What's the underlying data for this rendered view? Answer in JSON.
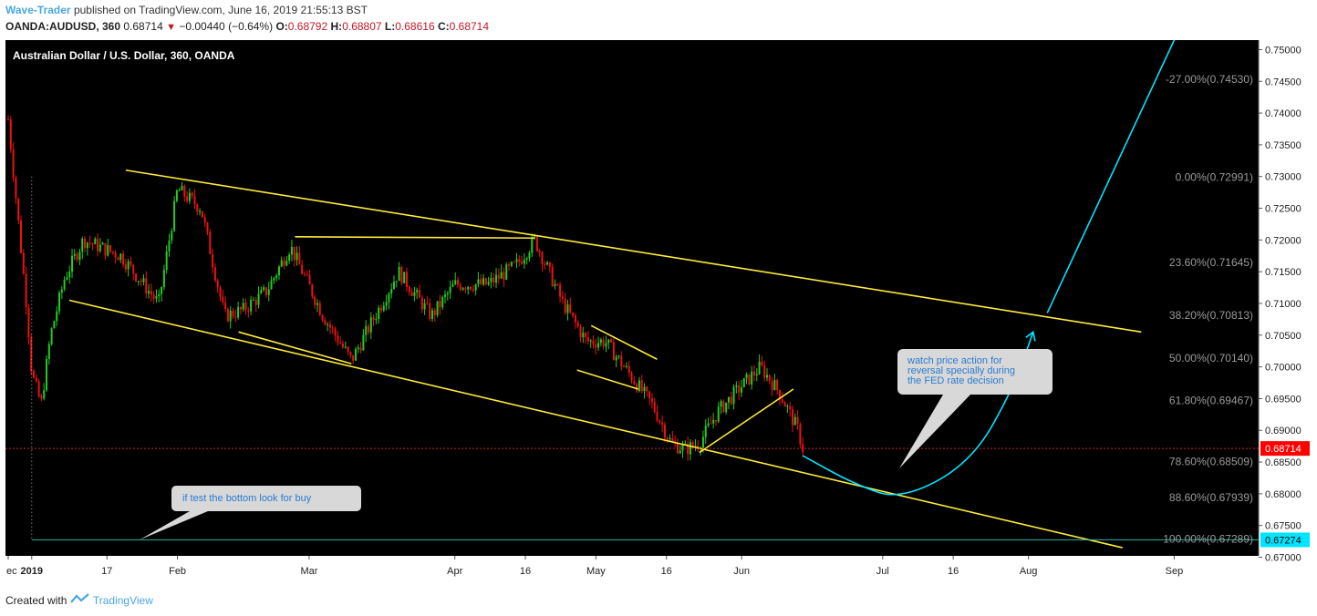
{
  "header": {
    "author": "Wave-Trader",
    "published_text": "published on TradingView.com, June 16, 2019 21:55:13 BST",
    "symbol": "OANDA:AUDUSD, 360",
    "last": "0.68714",
    "change": "−0.00440 (−0.64%)",
    "o_label": "O:",
    "o_value": "0.68792",
    "h_label": "H:",
    "h_value": "0.68807",
    "l_label": "L:",
    "l_value": "0.68616",
    "c_label": "C:",
    "c_value": "0.68714"
  },
  "footer": {
    "created_with": "Created with",
    "brand": "TradingView"
  },
  "colors": {
    "background": "#000000",
    "up": "#22cc22",
    "down": "#ee1111",
    "trendline": "#ffeb3b",
    "projection": "#00e5ff",
    "price_tag": "#ff0000",
    "support_tag": "#00e5ff",
    "callout": "#d8d8d8",
    "callout_text": "#2a7bd1"
  },
  "chart_data": {
    "type": "candlestick",
    "title": "Australian Dollar / U.S. Dollar, 360, OANDA",
    "ylim": [
      0.67,
      0.7515
    ],
    "y_ticks": [
      "0.75000",
      "0.74500",
      "0.74000",
      "0.73500",
      "0.73000",
      "0.72500",
      "0.72000",
      "0.71500",
      "0.71000",
      "0.70500",
      "0.70000",
      "0.69500",
      "0.69000",
      "0.68500",
      "0.68000",
      "0.67500",
      "0.67000"
    ],
    "x_ticks": [
      "ec",
      "2019",
      "17",
      "Feb",
      "Mar",
      "Apr",
      "16",
      "May",
      "16",
      "Jun",
      "Jul",
      "16",
      "Aug",
      "Sep"
    ],
    "x_tick_dates": [
      "2018-12-27",
      "2019-01-01",
      "2019-01-17",
      "2019-02-01",
      "2019-03-01",
      "2019-04-01",
      "2019-04-16",
      "2019-05-01",
      "2019-05-16",
      "2019-06-01",
      "2019-07-01",
      "2019-07-16",
      "2019-08-01",
      "2019-09-01"
    ],
    "fib_levels": [
      {
        "label": "-27.00%(0.74530)",
        "price": 0.7453
      },
      {
        "label": "0.00%(0.72991)",
        "price": 0.72991
      },
      {
        "label": "23.60%(0.71645)",
        "price": 0.71645
      },
      {
        "label": "38.20%(0.70813)",
        "price": 0.70813
      },
      {
        "label": "50.00%(0.70140)",
        "price": 0.7014
      },
      {
        "label": "61.80%(0.69467)",
        "price": 0.69467
      },
      {
        "label": "78.60%(0.68509)",
        "price": 0.68509
      },
      {
        "label": "88.60%(0.67939)",
        "price": 0.67939
      },
      {
        "label": "100.00%(0.67289)",
        "price": 0.67289
      }
    ],
    "price_key_points": [
      {
        "date": "2018-12-27",
        "price": 0.739
      },
      {
        "date": "2018-12-31",
        "price": 0.709
      },
      {
        "date": "2019-01-01",
        "price": 0.699
      },
      {
        "date": "2019-01-03",
        "price": 0.694
      },
      {
        "date": "2019-01-05",
        "price": 0.705
      },
      {
        "date": "2019-01-08",
        "price": 0.714
      },
      {
        "date": "2019-01-12",
        "price": 0.72
      },
      {
        "date": "2019-01-20",
        "price": 0.7175
      },
      {
        "date": "2019-01-28",
        "price": 0.71
      },
      {
        "date": "2019-02-01",
        "price": 0.728
      },
      {
        "date": "2019-02-06",
        "price": 0.725
      },
      {
        "date": "2019-02-11",
        "price": 0.708
      },
      {
        "date": "2019-02-15",
        "price": 0.709
      },
      {
        "date": "2019-02-20",
        "price": 0.712
      },
      {
        "date": "2019-02-25",
        "price": 0.719
      },
      {
        "date": "2019-03-04",
        "price": 0.708
      },
      {
        "date": "2019-03-10",
        "price": 0.701
      },
      {
        "date": "2019-03-15",
        "price": 0.708
      },
      {
        "date": "2019-03-20",
        "price": 0.715
      },
      {
        "date": "2019-03-27",
        "price": 0.708
      },
      {
        "date": "2019-04-01",
        "price": 0.713
      },
      {
        "date": "2019-04-08",
        "price": 0.713
      },
      {
        "date": "2019-04-14",
        "price": 0.716
      },
      {
        "date": "2019-04-18",
        "price": 0.72
      },
      {
        "date": "2019-04-24",
        "price": 0.71
      },
      {
        "date": "2019-04-29",
        "price": 0.704
      },
      {
        "date": "2019-05-03",
        "price": 0.704
      },
      {
        "date": "2019-05-09",
        "price": 0.698
      },
      {
        "date": "2019-05-13",
        "price": 0.694
      },
      {
        "date": "2019-05-17",
        "price": 0.688
      },
      {
        "date": "2019-05-20",
        "price": 0.687
      },
      {
        "date": "2019-05-23",
        "price": 0.688
      },
      {
        "date": "2019-05-27",
        "price": 0.693
      },
      {
        "date": "2019-06-01",
        "price": 0.697
      },
      {
        "date": "2019-06-05",
        "price": 0.7
      },
      {
        "date": "2019-06-09",
        "price": 0.696
      },
      {
        "date": "2019-06-13",
        "price": 0.69
      },
      {
        "date": "2019-06-14",
        "price": 0.6871
      }
    ],
    "current_price": {
      "label": "0.68714",
      "price": 0.68714
    },
    "support_price": {
      "label": "0.67274",
      "price": 0.67274
    },
    "trendlines": [
      {
        "name": "channel-upper",
        "from": {
          "date": "2019-01-21",
          "price": 0.731
        },
        "to": {
          "date": "2019-08-25",
          "price": 0.7055
        }
      },
      {
        "name": "channel-lower",
        "from": {
          "date": "2019-01-09",
          "price": 0.7105
        },
        "to": {
          "date": "2019-08-21",
          "price": 0.6715
        }
      },
      {
        "name": "inner-lower",
        "from": {
          "date": "2019-02-14",
          "price": 0.7055
        },
        "to": {
          "date": "2019-03-10",
          "price": 0.7005
        }
      },
      {
        "name": "horizontal-top",
        "from": {
          "date": "2019-02-26",
          "price": 0.7205
        },
        "to": {
          "date": "2019-04-18",
          "price": 0.7203
        }
      },
      {
        "name": "flag-upper",
        "from": {
          "date": "2019-04-30",
          "price": 0.7065
        },
        "to": {
          "date": "2019-05-14",
          "price": 0.7012
        }
      },
      {
        "name": "flag-lower",
        "from": {
          "date": "2019-04-27",
          "price": 0.6995
        },
        "to": {
          "date": "2019-05-10",
          "price": 0.6965
        }
      },
      {
        "name": "wedge-upper",
        "from": {
          "date": "2019-05-23",
          "price": 0.6865
        },
        "to": {
          "date": "2019-06-12",
          "price": 0.6965
        }
      }
    ],
    "projection_path": [
      {
        "date": "2019-06-14",
        "price": 0.686
      },
      {
        "date": "2019-06-25",
        "price": 0.6815
      },
      {
        "date": "2019-07-05",
        "price": 0.679
      },
      {
        "date": "2019-07-20",
        "price": 0.685
      },
      {
        "date": "2019-07-29",
        "price": 0.697
      },
      {
        "date": "2019-08-02",
        "price": 0.7055
      }
    ],
    "projection_arrow_up": {
      "from": {
        "date": "2019-08-05",
        "price": 0.7085
      },
      "to": {
        "date": "2019-09-01",
        "price": 0.7515
      }
    },
    "annotations": [
      {
        "text": "if test the bottom look for buy"
      },
      {
        "text": [
          "watch price action for",
          "reversal specially during",
          "the FED rate decision"
        ]
      }
    ]
  }
}
